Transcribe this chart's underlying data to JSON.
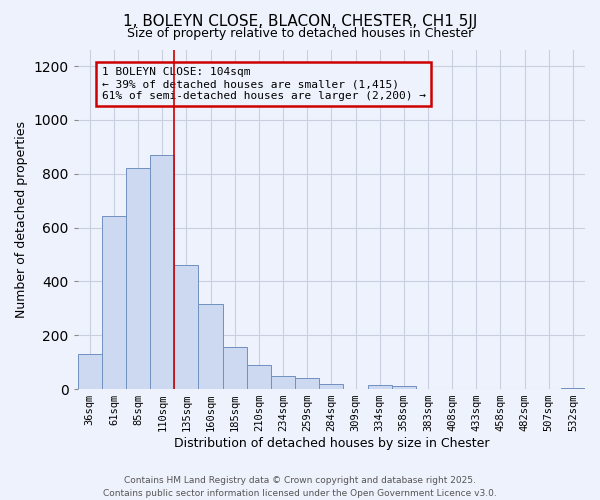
{
  "title": "1, BOLEYN CLOSE, BLACON, CHESTER, CH1 5JJ",
  "subtitle": "Size of property relative to detached houses in Chester",
  "xlabel": "Distribution of detached houses by size in Chester",
  "ylabel": "Number of detached properties",
  "bar_labels": [
    "36sqm",
    "61sqm",
    "85sqm",
    "110sqm",
    "135sqm",
    "160sqm",
    "185sqm",
    "210sqm",
    "234sqm",
    "259sqm",
    "284sqm",
    "309sqm",
    "334sqm",
    "358sqm",
    "383sqm",
    "408sqm",
    "433sqm",
    "458sqm",
    "482sqm",
    "507sqm",
    "532sqm"
  ],
  "bar_values": [
    130,
    645,
    820,
    870,
    460,
    315,
    155,
    90,
    50,
    40,
    20,
    0,
    15,
    13,
    0,
    0,
    0,
    0,
    0,
    0,
    5
  ],
  "bar_color": "#ccd9f0",
  "bar_edgecolor": "#7090c0",
  "ylim": [
    0,
    1260
  ],
  "yticks": [
    0,
    200,
    400,
    600,
    800,
    1000,
    1200
  ],
  "vline_idx": 3.5,
  "vline_color": "#cc0000",
  "annotation_title": "1 BOLEYN CLOSE: 104sqm",
  "annotation_line1": "← 39% of detached houses are smaller (1,415)",
  "annotation_line2": "61% of semi-detached houses are larger (2,200) →",
  "annotation_box_color": "#cc0000",
  "bg_color": "#eef2fc",
  "footer1": "Contains HM Land Registry data © Crown copyright and database right 2025.",
  "footer2": "Contains public sector information licensed under the Open Government Licence v3.0.",
  "grid_color": "#c8d0e0"
}
